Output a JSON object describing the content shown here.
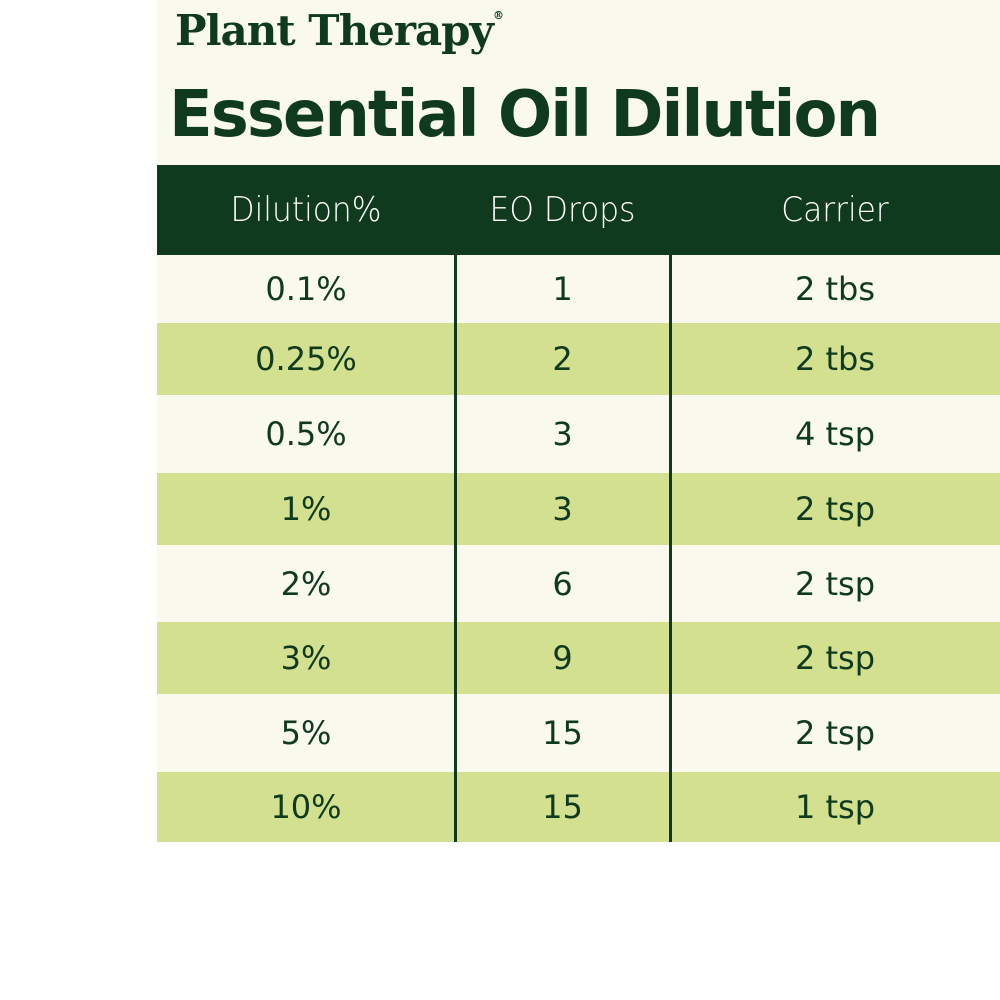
{
  "header": {
    "brand": "Plant Therapy",
    "brand_mark": "®",
    "title": "Essential Oil Dilution"
  },
  "table": {
    "columns": [
      "Dilution%",
      "EO Drops",
      "Carrier"
    ],
    "rows": [
      [
        "0.1%",
        "1",
        "2 tbs"
      ],
      [
        "0.25%",
        "2",
        "2 tbs"
      ],
      [
        "0.5%",
        "3",
        "4 tsp"
      ],
      [
        "1%",
        "3",
        "2 tsp"
      ],
      [
        "2%",
        "6",
        "2 tsp"
      ],
      [
        "3%",
        "9",
        "2 tsp"
      ],
      [
        "5%",
        "15",
        "2 tsp"
      ],
      [
        "10%",
        "15",
        "1 tsp"
      ]
    ]
  }
}
